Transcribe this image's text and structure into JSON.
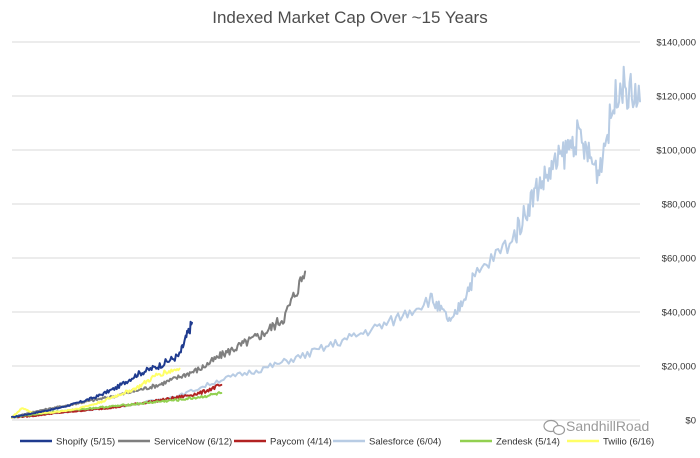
{
  "chart_data": {
    "type": "line",
    "title": "Indexed Market Cap Over ~15 Years",
    "xlabel": "",
    "ylabel": "",
    "ylim": [
      0,
      140000
    ],
    "yticks": [
      0,
      20000,
      40000,
      60000,
      80000,
      100000,
      120000,
      140000
    ],
    "ytick_labels": [
      "$0",
      "$20,000",
      "$40,000",
      "$60,000",
      "$80,000",
      "$100,000",
      "$120,000",
      "$140,000"
    ],
    "x_unit": "years since start",
    "xlim": [
      0,
      15
    ],
    "grid": true,
    "legend_position": "bottom",
    "series": [
      {
        "name": "Shopify (5/15)",
        "color": "#1f3b8f",
        "x": [
          0,
          0.5,
          1,
          1.5,
          2,
          2.5,
          3,
          3.5,
          4,
          4.3
        ],
        "y": [
          1000,
          2500,
          4000,
          6000,
          8500,
          12000,
          17000,
          20000,
          24000,
          36000
        ]
      },
      {
        "name": "ServiceNow (6/12)",
        "color": "#7f7f7f",
        "x": [
          0,
          0.5,
          1,
          1.5,
          2,
          2.5,
          3,
          3.5,
          4,
          4.5,
          5,
          5.5,
          6,
          6.5,
          7
        ],
        "y": [
          1000,
          3000,
          4500,
          6000,
          7500,
          9000,
          11000,
          13000,
          16000,
          19000,
          24000,
          28000,
          32000,
          38000,
          55000
        ]
      },
      {
        "name": "Paycom (4/14)",
        "color": "#b22222",
        "x": [
          0,
          0.5,
          1,
          1.5,
          2,
          2.5,
          3,
          3.5,
          4,
          4.5,
          5
        ],
        "y": [
          1000,
          1500,
          2500,
          3200,
          4000,
          4800,
          6000,
          7200,
          8500,
          10000,
          13000
        ]
      },
      {
        "name": "Salesforce (6/04)",
        "color": "#b8cce4",
        "x": [
          0,
          1,
          2,
          3,
          4,
          5,
          6,
          7,
          8,
          9,
          10,
          10.5,
          11,
          12,
          12.5,
          13,
          13.5,
          14,
          14.5,
          15
        ],
        "y": [
          1000,
          2500,
          4000,
          6000,
          9000,
          15000,
          19000,
          24000,
          30000,
          36000,
          45000,
          36000,
          52000,
          68000,
          85000,
          95000,
          105000,
          92000,
          125000,
          118000
        ]
      },
      {
        "name": "Zendesk (5/14)",
        "color": "#92d050",
        "x": [
          0,
          0.5,
          1,
          1.5,
          2,
          2.5,
          3,
          3.5,
          4,
          4.5,
          5
        ],
        "y": [
          1000,
          2000,
          3000,
          3800,
          4500,
          5200,
          6000,
          6800,
          7500,
          8500,
          10000
        ]
      },
      {
        "name": "Twilio (6/16)",
        "color": "#ffff66",
        "x": [
          0,
          0.25,
          0.5,
          1,
          1.5,
          2,
          2.5,
          3,
          3.5,
          4
        ],
        "y": [
          1000,
          4500,
          2500,
          2800,
          4000,
          6000,
          9000,
          12000,
          17000,
          19000
        ]
      }
    ]
  },
  "watermark": {
    "icon": "wechat-icon",
    "text": "SandhillRoad"
  }
}
